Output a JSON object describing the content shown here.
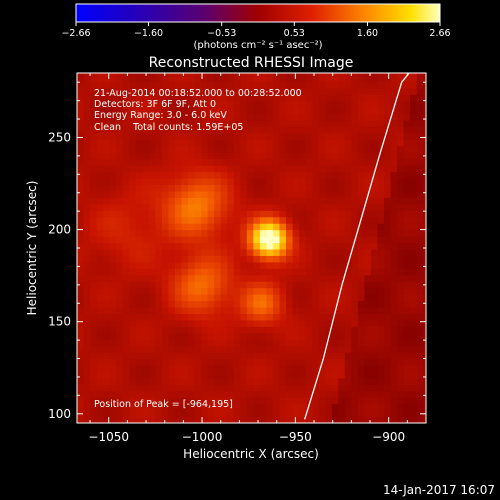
{
  "chart_data": {
    "type": "heatmap",
    "title": "Reconstructed RHESSI Image",
    "xlabel": "Heliocentric X (arcsec)",
    "ylabel": "Heliocentric Y (arcsec)",
    "xlim": [
      -1067,
      -880
    ],
    "ylim": [
      95,
      285
    ],
    "x_ticks": [
      -1050,
      -1000,
      -950,
      -900
    ],
    "y_ticks": [
      100,
      150,
      200,
      250
    ],
    "x_tick_labels": [
      "−1050",
      "−1000",
      "−950",
      "−900"
    ],
    "y_tick_labels": [
      "100",
      "150",
      "200",
      "250"
    ],
    "colorbar": {
      "range": [
        -2.66,
        2.66
      ],
      "ticks": [
        -2.66,
        -1.6,
        -0.53,
        0.53,
        1.6,
        2.66
      ],
      "tick_labels": [
        "−2.66",
        "−1.60",
        "−0.53",
        "0.53",
        "1.60",
        "2.66"
      ],
      "units_label": "(photons cm⁻² s⁻¹ asec⁻²)",
      "colormap": "red-temperature"
    },
    "annotations": [
      "21-Aug-2014 00:18:52.000 to 00:28:52.000",
      "Detectors: 3F 6F 9F, Att 0",
      "Energy Range: 3.0 - 6.0 keV",
      "Clean    Total counts: 1.59E+05"
    ],
    "peak_label": "Position of Peak = [-964,195]",
    "sources": [
      {
        "x": -964,
        "y": 195,
        "amplitude": 2.66,
        "sigma": 7
      },
      {
        "x": -1003,
        "y": 213,
        "amplitude": 1.05,
        "sigma": 12
      },
      {
        "x": -1000,
        "y": 170,
        "amplitude": 0.95,
        "sigma": 11
      },
      {
        "x": -968,
        "y": 160,
        "amplitude": 0.9,
        "sigma": 8
      },
      {
        "x": -1040,
        "y": 200,
        "amplitude": 0.3,
        "sigma": 15
      }
    ],
    "limb_curve": [
      [
        -945,
        97
      ],
      [
        -935,
        130
      ],
      [
        -925,
        170
      ],
      [
        -915,
        205
      ],
      [
        -905,
        240
      ],
      [
        -893,
        280
      ],
      [
        -889,
        285
      ]
    ],
    "grid": false
  },
  "footer": {
    "date": "14-Jan-2017 16:07"
  }
}
